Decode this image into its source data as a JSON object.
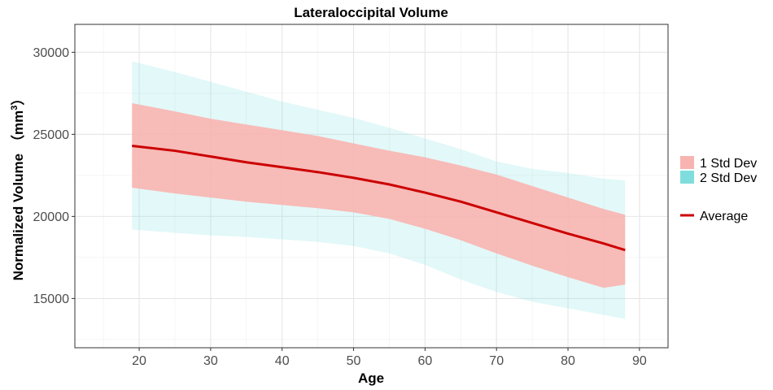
{
  "chart_data": {
    "type": "area",
    "title": "Lateraloccipital Volume",
    "xlabel": "Age",
    "ylabel": "Normalized Volume",
    "ylabel_unit_base": "（mm",
    "ylabel_unit_sup": "3",
    "ylabel_unit_close": "）",
    "xlim": [
      11,
      94
    ],
    "ylim": [
      12000,
      31700
    ],
    "x_ticks": [
      20,
      30,
      40,
      50,
      60,
      70,
      80,
      90
    ],
    "y_ticks": [
      15000,
      20000,
      25000,
      30000
    ],
    "grid": true,
    "legend_position": "right",
    "x": [
      19,
      25,
      30,
      35,
      40,
      45,
      50,
      55,
      60,
      65,
      70,
      75,
      80,
      85,
      88
    ],
    "series": [
      {
        "name": "Average",
        "kind": "line",
        "color": "#cc0000",
        "values": [
          24300,
          24000,
          23650,
          23300,
          23000,
          22700,
          22350,
          21950,
          21450,
          20900,
          20250,
          19600,
          18950,
          18350,
          17950
        ]
      },
      {
        "name": "1 Std Dev",
        "kind": "band",
        "color": "#f8b4b0",
        "lower": [
          21750,
          21400,
          21150,
          20900,
          20700,
          20500,
          20250,
          19850,
          19250,
          18550,
          17750,
          17000,
          16300,
          15650,
          15850
        ],
        "upper": [
          26900,
          26400,
          25950,
          25600,
          25250,
          24900,
          24450,
          24000,
          23600,
          23100,
          22550,
          21850,
          21150,
          20450,
          20100
        ]
      },
      {
        "name": "2 Std Dev",
        "kind": "band",
        "color": "#7fdedd",
        "lower": [
          19200,
          19000,
          18850,
          18750,
          18600,
          18450,
          18200,
          17750,
          17050,
          16150,
          15400,
          14800,
          14400,
          14000,
          13750
        ],
        "upper": [
          29450,
          28800,
          28200,
          27600,
          27000,
          26500,
          26000,
          25400,
          24750,
          24100,
          23350,
          22900,
          22650,
          22300,
          22200
        ]
      }
    ]
  }
}
